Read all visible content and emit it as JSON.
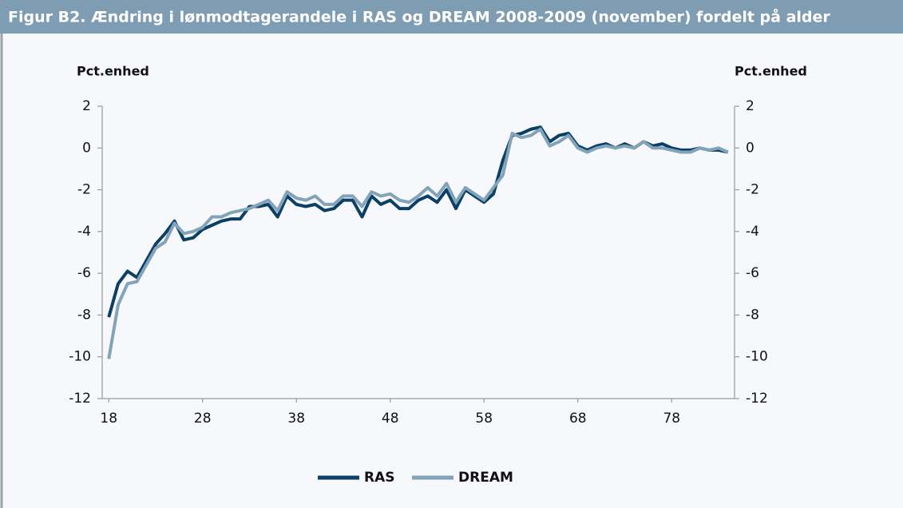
{
  "chart_data": {
    "type": "line",
    "title": "Figur B2. Ændring i lønmodtagerandele i RAS og DREAM 2008-2009 (november) fordelt på alder",
    "y_label": "Pct.enhed",
    "y2_label": "Pct.enhed",
    "x": [
      18,
      19,
      20,
      21,
      22,
      23,
      24,
      25,
      26,
      27,
      28,
      29,
      30,
      31,
      32,
      33,
      34,
      35,
      36,
      37,
      38,
      39,
      40,
      41,
      42,
      43,
      44,
      45,
      46,
      47,
      48,
      49,
      50,
      51,
      52,
      53,
      54,
      55,
      56,
      57,
      58,
      59,
      60,
      61,
      62,
      63,
      64,
      65,
      66,
      67,
      68,
      69,
      70,
      71,
      72,
      73,
      74,
      75,
      76,
      77,
      78,
      79,
      80,
      81,
      82,
      83,
      84
    ],
    "series": [
      {
        "name": "RAS",
        "color": "#0b3f66",
        "values": [
          -8.1,
          -6.5,
          -5.9,
          -6.2,
          -5.4,
          -4.6,
          -4.1,
          -3.5,
          -4.4,
          -4.3,
          -3.9,
          -3.7,
          -3.5,
          -3.4,
          -3.4,
          -2.8,
          -2.8,
          -2.7,
          -3.3,
          -2.3,
          -2.7,
          -2.8,
          -2.7,
          -3.0,
          -2.9,
          -2.5,
          -2.5,
          -3.3,
          -2.3,
          -2.7,
          -2.5,
          -2.9,
          -2.9,
          -2.5,
          -2.3,
          -2.6,
          -2.0,
          -2.9,
          -2.0,
          -2.3,
          -2.6,
          -2.2,
          -0.6,
          0.6,
          0.7,
          0.9,
          1.0,
          0.3,
          0.6,
          0.7,
          0.1,
          -0.1,
          0.1,
          0.2,
          0.0,
          0.2,
          0.0,
          0.3,
          0.1,
          0.2,
          0.0,
          -0.1,
          -0.1,
          0.0,
          -0.1,
          -0.1,
          -0.2
        ]
      },
      {
        "name": "DREAM",
        "color": "#82a3b8",
        "values": [
          -10.1,
          -7.5,
          -6.5,
          -6.4,
          -5.6,
          -4.8,
          -4.5,
          -3.6,
          -4.1,
          -4.0,
          -3.8,
          -3.3,
          -3.3,
          -3.1,
          -3.0,
          -2.9,
          -2.7,
          -2.5,
          -3.0,
          -2.1,
          -2.4,
          -2.5,
          -2.3,
          -2.7,
          -2.7,
          -2.3,
          -2.3,
          -2.8,
          -2.1,
          -2.3,
          -2.2,
          -2.5,
          -2.6,
          -2.3,
          -1.9,
          -2.3,
          -1.7,
          -2.6,
          -1.9,
          -2.2,
          -2.5,
          -1.9,
          -1.3,
          0.7,
          0.5,
          0.6,
          0.9,
          0.1,
          0.3,
          0.6,
          0.0,
          -0.2,
          0.0,
          0.1,
          0.0,
          0.1,
          0.0,
          0.3,
          0.0,
          0.0,
          -0.1,
          -0.2,
          -0.2,
          0.0,
          -0.1,
          0.0,
          -0.2
        ]
      }
    ],
    "xlim": [
      17.3,
      84.7
    ],
    "xticks": [
      18,
      28,
      38,
      48,
      58,
      68,
      78
    ],
    "ylim": [
      -12,
      2
    ],
    "yticks": [
      -12,
      -10,
      -8,
      -6,
      -4,
      -2,
      0,
      2
    ],
    "y2lim": [
      -12,
      2
    ],
    "y2ticks": [
      -12,
      -10,
      -8,
      -6,
      -4,
      -2,
      0,
      2
    ],
    "legend": "bottom"
  }
}
